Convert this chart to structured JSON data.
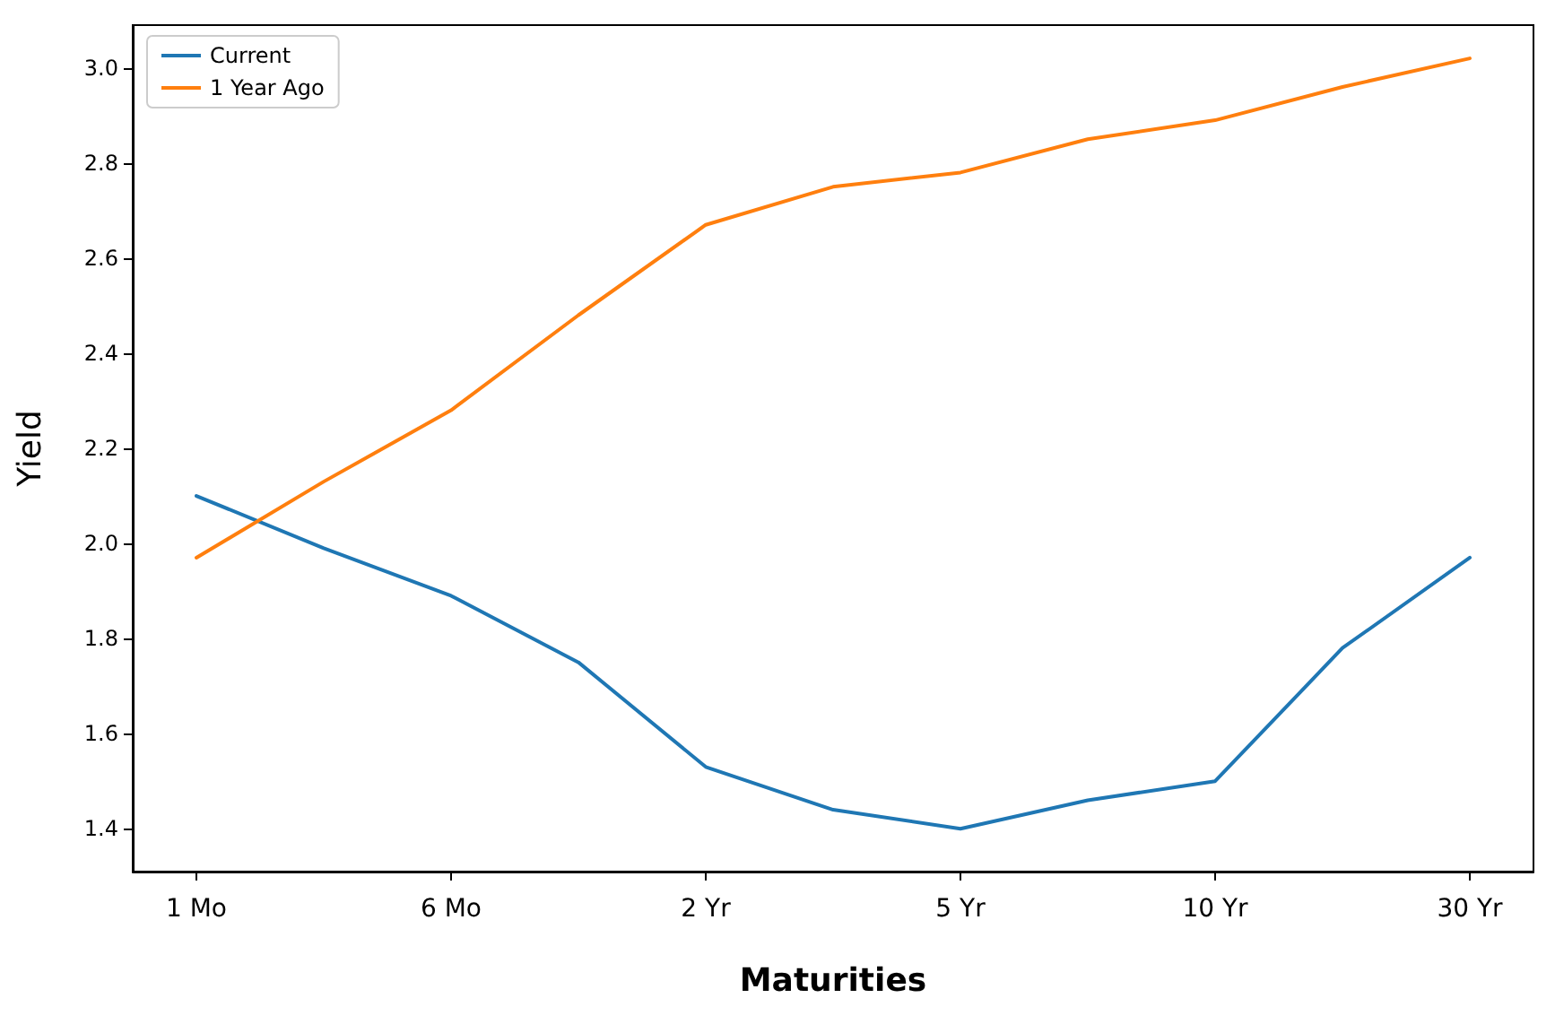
{
  "chart_data": {
    "type": "line",
    "xlabel": "Maturities",
    "ylabel": "Yield",
    "categories": [
      "1 Mo",
      null,
      "6 Mo",
      null,
      "2 Yr",
      null,
      "5 Yr",
      null,
      "10 Yr",
      null,
      "30 Yr"
    ],
    "series": [
      {
        "name": "Current",
        "color": "#1f77b4",
        "values": [
          2.1,
          1.99,
          1.89,
          1.75,
          1.53,
          1.44,
          1.4,
          1.46,
          1.5,
          1.78,
          1.97
        ]
      },
      {
        "name": "1 Year Ago",
        "color": "#ff7f0e",
        "values": [
          1.97,
          2.13,
          2.28,
          2.48,
          2.67,
          2.75,
          2.78,
          2.85,
          2.89,
          2.96,
          3.02
        ]
      }
    ],
    "ylim": [
      1.31,
      3.09
    ],
    "yticks": [
      {
        "value": 1.4,
        "label": "1.4"
      },
      {
        "value": 1.6,
        "label": "1.6"
      },
      {
        "value": 1.8,
        "label": "1.8"
      },
      {
        "value": 2.0,
        "label": "2.0"
      },
      {
        "value": 2.2,
        "label": "2.2"
      },
      {
        "value": 2.4,
        "label": "2.4"
      },
      {
        "value": 2.6,
        "label": "2.6"
      },
      {
        "value": 2.8,
        "label": "2.8"
      },
      {
        "value": 3.0,
        "label": "3.0"
      }
    ],
    "grid": false,
    "legend": "top left",
    "marker": "none",
    "line_style": "solid"
  }
}
